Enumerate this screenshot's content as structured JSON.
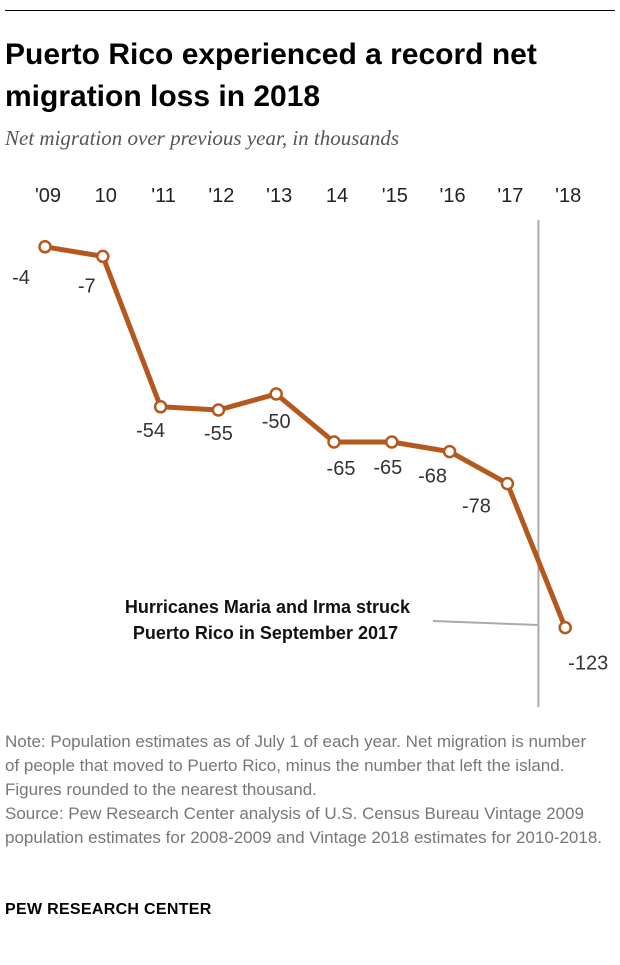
{
  "title": "Puerto Rico experienced a record net migration loss in 2018",
  "subtitle": "Net migration over previous year, in thousands",
  "chart_data": {
    "type": "line",
    "title": "Puerto Rico experienced a record net migration loss in 2018",
    "subtitle": "Net migration over previous year, in thousands",
    "categories": [
      "'09",
      "10",
      "'11",
      "'12",
      "'13",
      "14",
      "'15",
      "'16",
      "'17",
      "'18"
    ],
    "series": [
      {
        "name": "Net migration",
        "values": [
          -4,
          -7,
          -54,
          -55,
          -50,
          -65,
          -65,
          -68,
          -78,
          -123
        ],
        "labels": [
          "-4",
          "-7",
          "-54",
          "-55",
          "-50",
          "-65",
          "-65",
          "-68",
          "-78",
          "-123"
        ]
      }
    ],
    "ylim": [
      -130,
      0
    ],
    "xlabel": "",
    "ylabel": "",
    "grid": false,
    "annotation": {
      "line1": "Hurricanes Maria and Irma struck",
      "line2": "Puerto Rico in September 2017"
    },
    "colors": {
      "line": "#b5581e",
      "marker_fill": "#ffffff",
      "event_line": "#aaaaaa"
    }
  },
  "notes": {
    "note": "Note: Population estimates as of July 1 of each year. Net migration is number of people that moved to Puerto Rico, minus the number that left the island. Figures rounded to the nearest thousand.",
    "source": "Source: Pew Research Center analysis of U.S. Census Bureau Vintage 2009 population estimates for 2008-2009 and Vintage 2018 estimates for 2010-2018."
  },
  "brand": "PEW RESEARCH CENTER"
}
